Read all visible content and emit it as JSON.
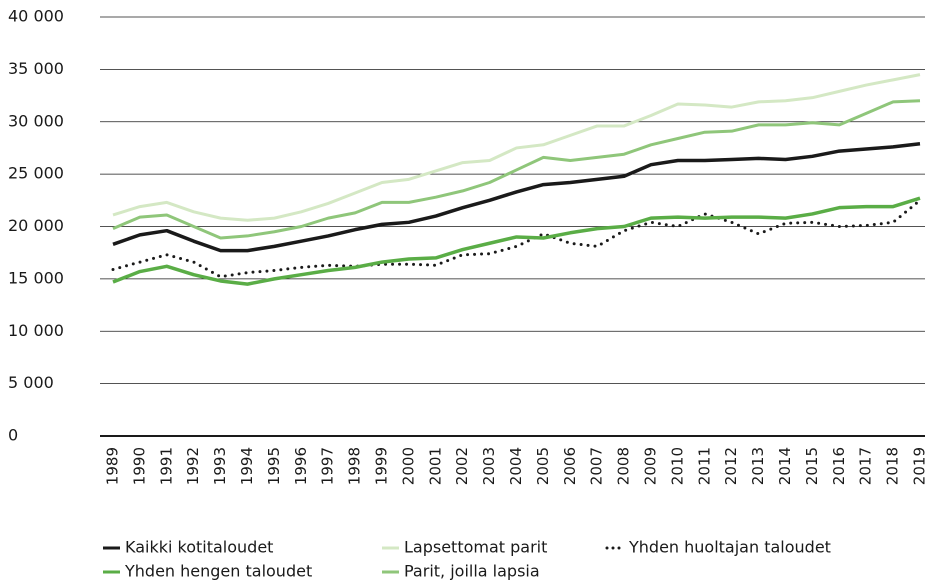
{
  "chart_data": {
    "type": "line",
    "categories": [
      "1989",
      "1990",
      "1991",
      "1992",
      "1993",
      "1994",
      "1995",
      "1996",
      "1997",
      "1998",
      "1999",
      "2000",
      "2001",
      "2002",
      "2003",
      "2004",
      "2005",
      "2006",
      "2007",
      "2008",
      "2009",
      "2010",
      "2011",
      "2012",
      "2013",
      "2014",
      "2015",
      "2016",
      "2017",
      "2018",
      "2019"
    ],
    "ylim": [
      0,
      40000
    ],
    "yticks": [
      0,
      {
        "value": 5000,
        "label": "5 000"
      },
      {
        "value": 10000,
        "label": "10 000"
      },
      {
        "value": 15000,
        "label": "15 000"
      },
      {
        "value": 20000,
        "label": "20 000"
      },
      {
        "value": 25000,
        "label": "25 000"
      },
      {
        "value": 30000,
        "label": "30 000"
      },
      {
        "value": 35000,
        "label": "35 000"
      },
      {
        "value": 40000,
        "label": "40 000"
      }
    ],
    "grid": true,
    "legend": "bottom",
    "series": [
      {
        "name": "Kaikki kotitaloudet",
        "color": "#1a1a1a",
        "style": "solid",
        "values": [
          18300,
          19200,
          19600,
          18600,
          17700,
          17700,
          18100,
          18600,
          19100,
          19700,
          20200,
          20400,
          21000,
          21800,
          22500,
          23300,
          24000,
          24200,
          24500,
          24800,
          25900,
          26300,
          26300,
          26400,
          26500,
          26400,
          26700,
          27200,
          27400,
          27600,
          27900
        ]
      },
      {
        "name": "Lapsettomat parit",
        "color": "#d4e8c4",
        "style": "solid",
        "values": [
          21100,
          21900,
          22300,
          21400,
          20800,
          20600,
          20800,
          21400,
          22200,
          23200,
          24200,
          24500,
          25300,
          26100,
          26300,
          27500,
          27800,
          28700,
          29600,
          29600,
          30600,
          31700,
          31600,
          31400,
          31900,
          32000,
          32300,
          32900,
          33500,
          34000,
          34500
        ]
      },
      {
        "name": "Yhden huoltajan taloudet",
        "color": "#1a1a1a",
        "style": "dotted",
        "values": [
          15900,
          16600,
          17300,
          16600,
          15200,
          15600,
          15800,
          16100,
          16300,
          16200,
          16400,
          16400,
          16300,
          17300,
          17400,
          18100,
          19300,
          18400,
          18100,
          19600,
          20400,
          20000,
          21200,
          20400,
          19300,
          20300,
          20400,
          20000,
          20100,
          20400,
          22500
        ]
      },
      {
        "name": "Yhden hengen taloudet",
        "color": "#5aad46",
        "style": "solid",
        "values": [
          14700,
          15700,
          16200,
          15400,
          14800,
          14500,
          15000,
          15400,
          15800,
          16100,
          16600,
          16900,
          17000,
          17800,
          18400,
          19000,
          18900,
          19400,
          19800,
          20000,
          20800,
          20900,
          20800,
          20900,
          20900,
          20800,
          21200,
          21800,
          21900,
          21900,
          22700
        ]
      },
      {
        "name": "Parit, joilla lapsia",
        "color": "#8fc67a",
        "style": "solid",
        "values": [
          19800,
          20900,
          21100,
          20000,
          18900,
          19100,
          19500,
          20000,
          20800,
          21300,
          22300,
          22300,
          22800,
          23400,
          24200,
          25400,
          26600,
          26300,
          26600,
          26900,
          27800,
          28400,
          29000,
          29100,
          29700,
          29700,
          29900,
          29700,
          30800,
          31900,
          32000
        ]
      }
    ]
  }
}
